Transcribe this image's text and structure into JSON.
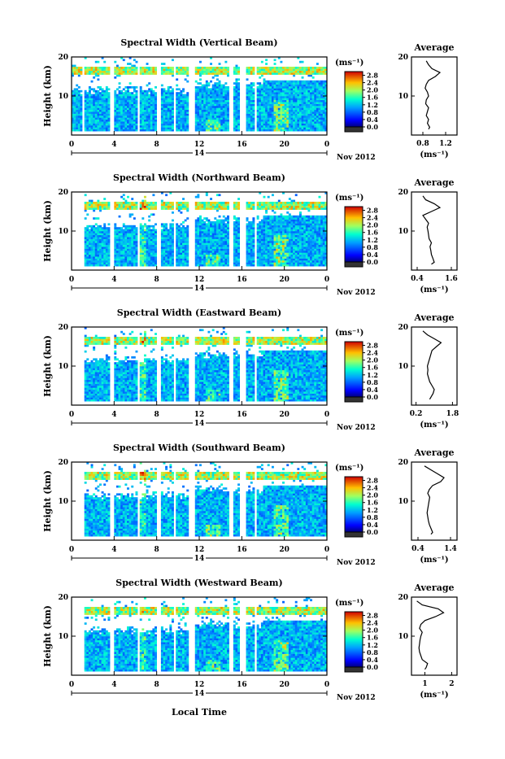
{
  "figure": {
    "x_axis_title": "Local Time",
    "date_label": "Nov 2012",
    "day_label": "14"
  },
  "colorbar": {
    "unit": "(ms⁻¹)",
    "ticks": [
      "0.0",
      "0.4",
      "0.8",
      "1.2",
      "1.6",
      "2.0",
      "2.4",
      "2.8"
    ],
    "range": [
      0.0,
      3.0
    ]
  },
  "chart_data": [
    {
      "type": "heatmap",
      "title": "Spectral Width (Vertical Beam)",
      "ylabel": "Height (km)",
      "xlabel": "Local Time",
      "x_ticks": [
        "0",
        "4",
        "8",
        "12",
        "16",
        "20",
        "0"
      ],
      "xlim": [
        0,
        24
      ],
      "y_ticks": [
        "10",
        "20"
      ],
      "ylim": [
        0,
        20
      ],
      "colorbar_unit": "(ms⁻¹)",
      "average_profile": {
        "title": "Average",
        "x_ticks": [
          "0.8",
          "1.2"
        ],
        "xlim": [
          0.6,
          1.4
        ],
        "xlabel": "(ms⁻¹)",
        "y_ticks": [
          "10",
          "20"
        ],
        "heights": [
          1.5,
          2,
          3,
          4,
          5,
          6,
          7,
          8,
          9,
          10,
          11,
          12,
          13,
          14,
          15,
          16,
          17,
          18,
          19
        ],
        "values": [
          0.9,
          0.92,
          0.88,
          0.9,
          0.86,
          0.88,
          0.9,
          0.85,
          0.86,
          0.9,
          0.88,
          0.84,
          0.86,
          0.9,
          1.02,
          1.1,
          0.96,
          0.9,
          0.86
        ]
      }
    },
    {
      "type": "heatmap",
      "title": "Spectral Width (Northward Beam)",
      "ylabel": "Height (km)",
      "xlabel": "Local Time",
      "x_ticks": [
        "0",
        "4",
        "8",
        "12",
        "16",
        "20",
        "0"
      ],
      "xlim": [
        0,
        24
      ],
      "y_ticks": [
        "10",
        "20"
      ],
      "ylim": [
        0,
        20
      ],
      "colorbar_unit": "(ms⁻¹)",
      "average_profile": {
        "title": "Average",
        "x_ticks": [
          "0.4",
          "1.6"
        ],
        "xlim": [
          0.2,
          1.8
        ],
        "xlabel": "(ms⁻¹)",
        "y_ticks": [
          "10",
          "20"
        ],
        "heights": [
          1.5,
          2,
          3,
          4,
          5,
          6,
          7,
          8,
          9,
          10,
          11,
          12,
          13,
          14,
          15,
          16,
          17,
          18,
          19
        ],
        "values": [
          0.9,
          1.0,
          0.95,
          0.9,
          0.88,
          0.85,
          0.9,
          0.82,
          0.8,
          0.78,
          0.75,
          0.8,
          0.7,
          0.6,
          0.9,
          1.2,
          1.0,
          0.7,
          0.6
        ]
      }
    },
    {
      "type": "heatmap",
      "title": "Spectral Width (Eastward Beam)",
      "ylabel": "Height (km)",
      "xlabel": "Local Time",
      "x_ticks": [
        "0",
        "4",
        "8",
        "12",
        "16",
        "20",
        "0"
      ],
      "xlim": [
        0,
        24
      ],
      "y_ticks": [
        "10",
        "20"
      ],
      "ylim": [
        0,
        20
      ],
      "colorbar_unit": "(ms⁻¹)",
      "average_profile": {
        "title": "Average",
        "x_ticks": [
          "0.2",
          "1.8"
        ],
        "xlim": [
          0.0,
          2.0
        ],
        "xlabel": "(ms⁻¹)",
        "y_ticks": [
          "10",
          "20"
        ],
        "heights": [
          1.5,
          2,
          3,
          4,
          5,
          6,
          7,
          8,
          9,
          10,
          11,
          12,
          13,
          14,
          15,
          16,
          17,
          18,
          19
        ],
        "values": [
          0.8,
          0.85,
          0.95,
          1.0,
          0.9,
          0.8,
          0.75,
          0.7,
          0.72,
          0.7,
          0.75,
          0.8,
          0.85,
          0.9,
          1.1,
          1.3,
          1.0,
          0.7,
          0.5
        ]
      }
    },
    {
      "type": "heatmap",
      "title": "Spectral Width (Southward Beam)",
      "ylabel": "Height (km)",
      "xlabel": "Local Time",
      "x_ticks": [
        "0",
        "4",
        "8",
        "12",
        "16",
        "20",
        "0"
      ],
      "xlim": [
        0,
        24
      ],
      "y_ticks": [
        "10",
        "20"
      ],
      "ylim": [
        0,
        20
      ],
      "colorbar_unit": "(ms⁻¹)",
      "average_profile": {
        "title": "Average",
        "x_ticks": [
          "0.4",
          "1.4"
        ],
        "xlim": [
          0.2,
          1.6
        ],
        "xlabel": "(ms⁻¹)",
        "y_ticks": [
          "10",
          "20"
        ],
        "heights": [
          1.5,
          2,
          3,
          4,
          5,
          6,
          7,
          8,
          9,
          10,
          11,
          12,
          13,
          14,
          15,
          16,
          17,
          18,
          19
        ],
        "values": [
          0.8,
          0.85,
          0.8,
          0.75,
          0.72,
          0.7,
          0.68,
          0.7,
          0.72,
          0.74,
          0.76,
          0.7,
          0.75,
          0.85,
          1.1,
          1.2,
          1.0,
          0.8,
          0.6
        ]
      }
    },
    {
      "type": "heatmap",
      "title": "Spectral Width (Westward Beam)",
      "ylabel": "Height (km)",
      "xlabel": "Local Time",
      "x_ticks": [
        "0",
        "4",
        "8",
        "12",
        "16",
        "20",
        "0"
      ],
      "xlim": [
        0,
        24
      ],
      "y_ticks": [
        "10",
        "20"
      ],
      "ylim": [
        0,
        20
      ],
      "colorbar_unit": "(ms⁻¹)",
      "average_profile": {
        "title": "Average",
        "x_ticks": [
          "1",
          "2"
        ],
        "xlim": [
          0.5,
          2.2
        ],
        "xlabel": "(ms⁻¹)",
        "y_ticks": [
          "10",
          "20"
        ],
        "heights": [
          1.5,
          2,
          3,
          4,
          5,
          6,
          7,
          8,
          9,
          10,
          11,
          12,
          13,
          14,
          15,
          16,
          17,
          18,
          19
        ],
        "values": [
          1.0,
          1.05,
          1.1,
          0.9,
          0.85,
          0.8,
          0.78,
          0.8,
          0.82,
          0.85,
          0.9,
          0.8,
          0.85,
          1.0,
          1.4,
          1.7,
          1.5,
          0.9,
          0.7
        ]
      }
    }
  ]
}
